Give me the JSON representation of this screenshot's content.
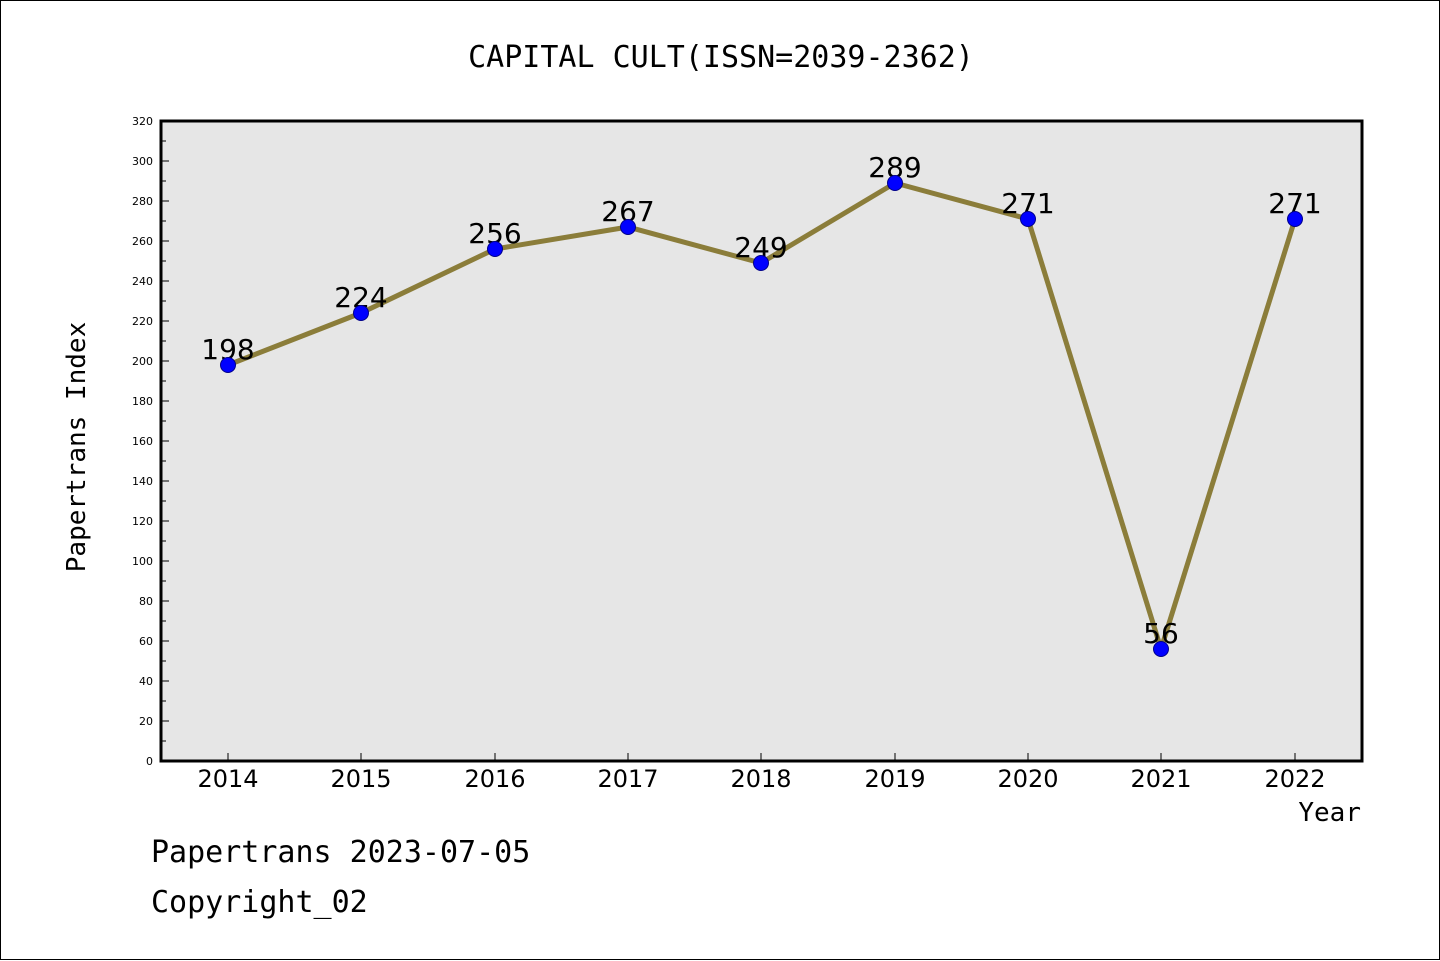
{
  "chart_data": {
    "type": "line",
    "title": "CAPITAL CULT(ISSN=2039-2362)",
    "xlabel": "Year",
    "ylabel": "Papertrans Index",
    "categories": [
      "2014",
      "2015",
      "2016",
      "2017",
      "2018",
      "2019",
      "2020",
      "2021",
      "2022"
    ],
    "series": [
      {
        "values": [
          198,
          224,
          256,
          267,
          249,
          289,
          271,
          56,
          271
        ]
      }
    ],
    "data_labels": [
      "198",
      "224",
      "256",
      "267",
      "249",
      "289",
      "271",
      "56",
      "271"
    ],
    "ylim": [
      0,
      320
    ],
    "yticks": [
      "0",
      "20",
      "40",
      "60",
      "80",
      "100",
      "120",
      "140",
      "160",
      "180",
      "200",
      "220",
      "240",
      "260",
      "280",
      "300",
      "320"
    ],
    "grid": false,
    "legend": "none",
    "colors": {
      "line": "#8B7D3A",
      "marker": "#0000FF",
      "plot_background": "#E6E6E6"
    }
  },
  "footer": {
    "date_line": "Papertrans 2023-07-05",
    "copyright": "Copyright_02"
  }
}
